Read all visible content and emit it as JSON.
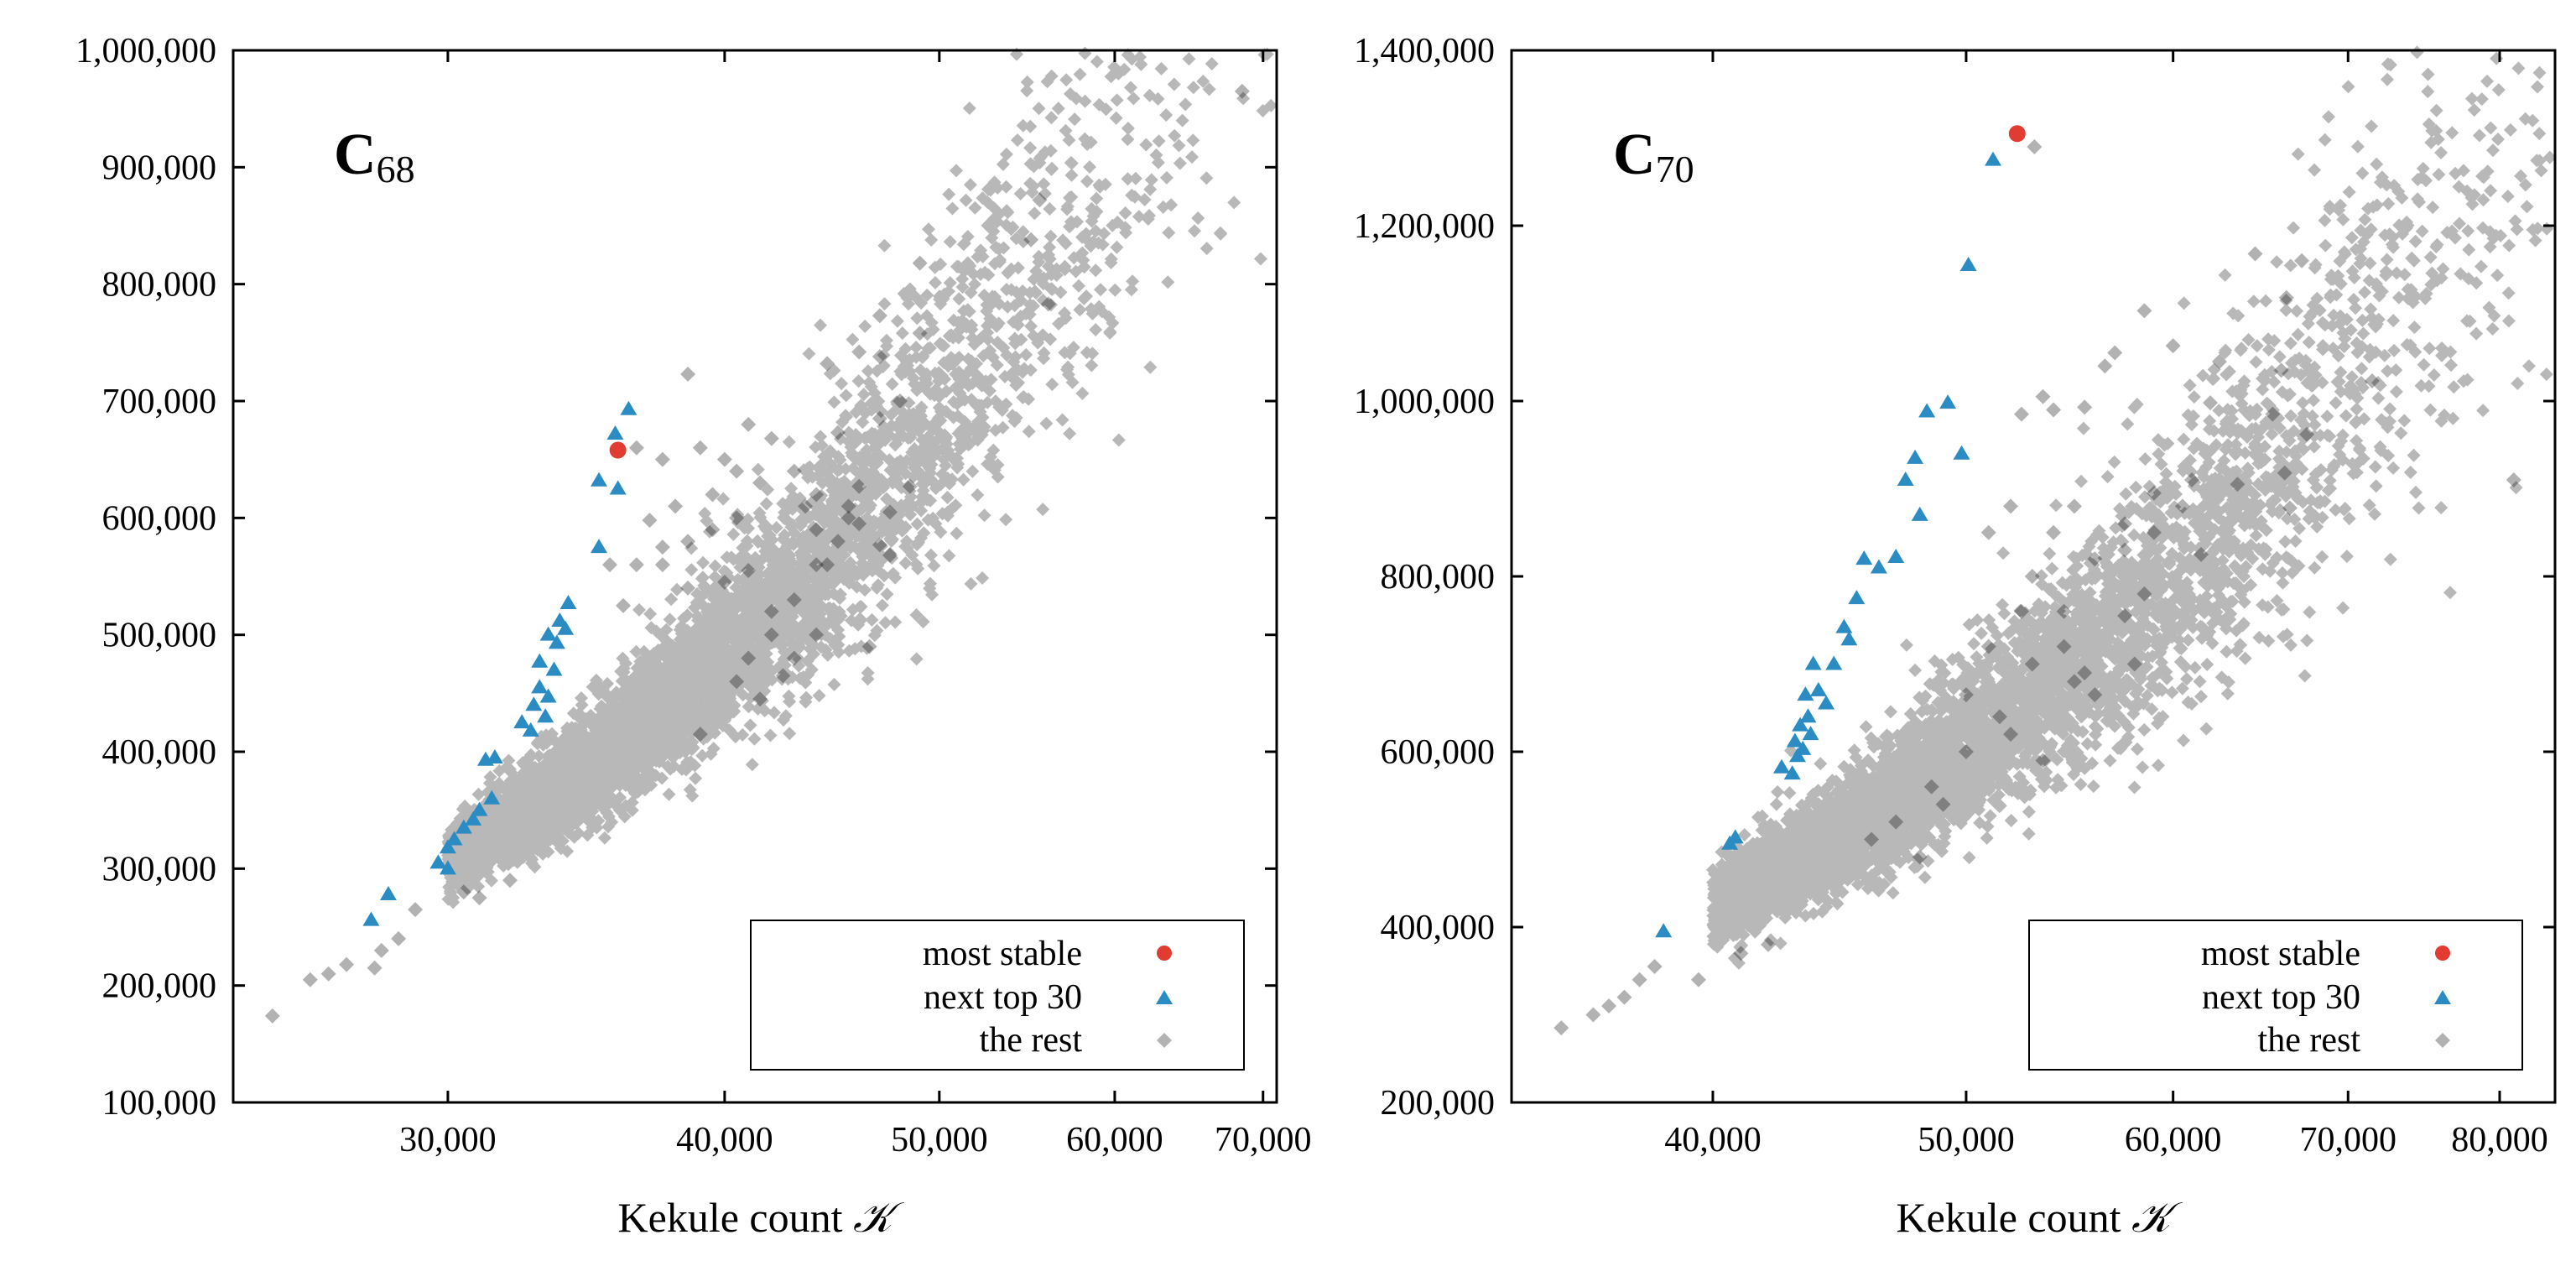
{
  "chart_data": [
    {
      "type": "scatter",
      "title": {
        "main": "C",
        "sub": "68"
      },
      "xlabel": "Kekule count",
      "xlabel_symbol": "𝒦",
      "xscale": "log",
      "xlim": [
        24000,
        71000
      ],
      "ylim": [
        100000,
        1000000
      ],
      "xticks": [
        30000,
        40000,
        50000,
        60000,
        70000
      ],
      "xtick_labels": [
        "30,000",
        "40,000",
        "50,000",
        "60,000",
        "70,000"
      ],
      "yticks": [
        100000,
        200000,
        300000,
        400000,
        500000,
        600000,
        700000,
        800000,
        900000,
        1000000
      ],
      "ytick_labels": [
        "100,000",
        "200,000",
        "300,000",
        "400,000",
        "500,000",
        "600,000",
        "700,000",
        "800,000",
        "900,000",
        "1,000,000"
      ],
      "legend_position": "bottom-right",
      "legend": [
        "most stable",
        "next top 30",
        "the rest"
      ],
      "series": [
        {
          "name": "most stable",
          "marker": "circle",
          "color": "#e03c31",
          "points": [
            [
              35800,
              658000
            ]
          ]
        },
        {
          "name": "next top 30",
          "marker": "triangle",
          "color": "#2b8cc4",
          "points": [
            [
              36200,
              693000
            ],
            [
              35700,
              672000
            ],
            [
              35100,
              632000
            ],
            [
              35800,
              625000
            ],
            [
              35100,
              575000
            ],
            [
              34000,
              527000
            ],
            [
              33700,
              512000
            ],
            [
              33900,
              505000
            ],
            [
              33300,
              500000
            ],
            [
              33600,
              493000
            ],
            [
              33000,
              477000
            ],
            [
              33500,
              470000
            ],
            [
              33000,
              455000
            ],
            [
              33300,
              447000
            ],
            [
              32800,
              440000
            ],
            [
              33200,
              430000
            ],
            [
              32700,
              418000
            ],
            [
              31500,
              395000
            ],
            [
              31200,
              393000
            ],
            [
              31400,
              360000
            ],
            [
              31000,
              350000
            ],
            [
              30800,
              342000
            ],
            [
              30500,
              335000
            ],
            [
              30200,
              325000
            ],
            [
              30000,
              318000
            ],
            [
              29700,
              305000
            ],
            [
              28200,
              278000
            ],
            [
              27700,
              256000
            ],
            [
              30000,
              300000
            ],
            [
              32400,
              425000
            ]
          ]
        },
        {
          "name": "the rest",
          "marker": "diamond",
          "color": "#000000",
          "cloud": {
            "base_x": 30000,
            "base_y": 305000,
            "slope": 1.6,
            "spread_along": 0.33,
            "spread_across": 0.045,
            "count": 5000,
            "seed": 11
          },
          "points": [
            [
              68500,
              965000
            ],
            [
              55500,
              872000
            ],
            [
              55000,
              838000
            ],
            [
              56000,
              783000
            ],
            [
              49000,
              818000
            ],
            [
              47000,
              773000
            ],
            [
              49000,
              758000
            ],
            [
              44500,
              732000
            ],
            [
              46000,
              742000
            ],
            [
              47000,
              738000
            ],
            [
              38500,
              723000
            ],
            [
              48000,
              700000
            ],
            [
              47000,
              685000
            ],
            [
              41000,
              680000
            ],
            [
              42000,
              668000
            ],
            [
              45000,
              673000
            ],
            [
              43000,
              640000
            ],
            [
              44000,
              620000
            ],
            [
              46000,
              627000
            ],
            [
              48500,
              627000
            ],
            [
              47500,
              605000
            ],
            [
              45500,
              600000
            ],
            [
              47000,
              577000
            ],
            [
              44500,
              560000
            ],
            [
              47500,
              568000
            ],
            [
              46500,
              490000
            ],
            [
              42500,
              465000
            ],
            [
              40500,
              460000
            ],
            [
              41500,
              445000
            ],
            [
              39000,
              415000
            ],
            [
              36500,
              660000
            ],
            [
              37500,
              650000
            ],
            [
              39000,
              660000
            ],
            [
              40000,
              650000
            ],
            [
              40500,
              600000
            ],
            [
              38000,
              610000
            ],
            [
              39500,
              590000
            ],
            [
              37000,
              598000
            ],
            [
              37500,
              560000
            ],
            [
              38500,
              540000
            ],
            [
              26500,
              210000
            ],
            [
              25000,
              174000
            ],
            [
              27000,
              218000
            ],
            [
              28000,
              230000
            ],
            [
              27800,
              215000
            ],
            [
              26000,
              205000
            ],
            [
              28500,
              240000
            ],
            [
              29000,
              265000
            ],
            [
              30500,
              280000
            ],
            [
              31000,
              275000
            ],
            [
              32000,
              290000
            ],
            [
              40000,
              545000
            ],
            [
              41000,
              555000
            ],
            [
              42000,
              520000
            ],
            [
              43000,
              530000
            ],
            [
              44000,
              560000
            ],
            [
              45000,
              580000
            ],
            [
              46000,
              595000
            ],
            [
              45500,
              610000
            ],
            [
              44000,
              590000
            ],
            [
              43500,
              610000
            ],
            [
              41500,
              630000
            ],
            [
              40500,
              640000
            ],
            [
              39500,
              620000
            ],
            [
              38500,
              580000
            ],
            [
              37500,
              575000
            ],
            [
              36500,
              560000
            ],
            [
              35500,
              560000
            ],
            [
              36000,
              525000
            ],
            [
              42000,
              500000
            ],
            [
              43000,
              480000
            ],
            [
              44000,
              500000
            ],
            [
              41000,
              480000
            ]
          ]
        }
      ]
    },
    {
      "type": "scatter",
      "title": {
        "main": "C",
        "sub": "70"
      },
      "xlabel": "Kekule count",
      "xlabel_symbol": "𝒦",
      "xscale": "log",
      "xlim": [
        33500,
        84000
      ],
      "ylim": [
        200000,
        1400000
      ],
      "xticks": [
        40000,
        50000,
        60000,
        70000,
        80000
      ],
      "xtick_labels": [
        "40,000",
        "50,000",
        "60,000",
        "70,000",
        "80,000"
      ],
      "yticks": [
        200000,
        400000,
        600000,
        800000,
        1000000,
        1200000,
        1400000
      ],
      "ytick_labels": [
        "200,000",
        "400,000",
        "600,000",
        "800,000",
        "1,000,000",
        "1,200,000",
        "1,400,000"
      ],
      "legend_position": "bottom-right",
      "legend": [
        "most stable",
        "next top 30",
        "the rest"
      ],
      "series": [
        {
          "name": "most stable",
          "marker": "circle",
          "color": "#e03c31",
          "points": [
            [
              52300,
              1305000
            ]
          ]
        },
        {
          "name": "next top 30",
          "marker": "triangle",
          "color": "#2b8cc4",
          "points": [
            [
              51200,
              1275000
            ],
            [
              50100,
              1155000
            ],
            [
              49200,
              998000
            ],
            [
              48300,
              988000
            ],
            [
              49800,
              940000
            ],
            [
              47800,
              935000
            ],
            [
              47400,
              910000
            ],
            [
              48000,
              870000
            ],
            [
              47000,
              822000
            ],
            [
              45700,
              820000
            ],
            [
              46300,
              810000
            ],
            [
              45400,
              775000
            ],
            [
              44900,
              742000
            ],
            [
              45100,
              728000
            ],
            [
              44500,
              700000
            ],
            [
              43700,
              700000
            ],
            [
              43900,
              670000
            ],
            [
              43400,
              665000
            ],
            [
              43500,
              640000
            ],
            [
              43200,
              630000
            ],
            [
              43600,
              620000
            ],
            [
              43000,
              612000
            ],
            [
              43300,
              603000
            ],
            [
              43100,
              595000
            ],
            [
              42500,
              582000
            ],
            [
              42900,
              575000
            ],
            [
              40800,
              502000
            ],
            [
              40600,
              495000
            ],
            [
              38300,
              395000
            ],
            [
              44200,
              655000
            ]
          ]
        },
        {
          "name": "the rest",
          "marker": "diamond",
          "color": "#000000",
          "cloud": {
            "base_x": 40000,
            "base_y": 420000,
            "slope": 1.6,
            "spread_along": 0.3,
            "spread_across": 0.05,
            "count": 5000,
            "seed": 29
          },
          "points": [
            [
              53100,
              1290000
            ],
            [
              64500,
              1168000
            ],
            [
              67200,
              1160000
            ],
            [
              66300,
              1118000
            ],
            [
              58500,
              1103000
            ],
            [
              56500,
              1040000
            ],
            [
              57000,
              1055000
            ],
            [
              60000,
              1063000
            ],
            [
              62500,
              1045000
            ],
            [
              71500,
              1023000
            ],
            [
              62000,
              998000
            ],
            [
              65500,
              985000
            ],
            [
              66000,
              1035000
            ],
            [
              67500,
              962000
            ],
            [
              55500,
              993000
            ],
            [
              54000,
              990000
            ],
            [
              53500,
              1005000
            ],
            [
              52500,
              985000
            ],
            [
              63500,
              905000
            ],
            [
              66200,
              918000
            ],
            [
              66500,
              878000
            ],
            [
              81000,
              910000
            ],
            [
              61000,
              910000
            ],
            [
              59000,
              895000
            ],
            [
              60500,
              880000
            ],
            [
              57500,
              860000
            ],
            [
              61500,
              825000
            ],
            [
              58500,
              780000
            ],
            [
              57500,
              755000
            ],
            [
              58000,
              700000
            ],
            [
              55500,
              690000
            ],
            [
              54500,
              720000
            ],
            [
              56000,
              665000
            ],
            [
              50000,
              665000
            ],
            [
              51000,
              720000
            ],
            [
              52500,
              760000
            ],
            [
              53000,
              800000
            ],
            [
              54000,
              850000
            ],
            [
              55000,
              880000
            ],
            [
              52000,
              880000
            ],
            [
              51000,
              850000
            ],
            [
              36000,
              300000
            ],
            [
              35000,
              285000
            ],
            [
              36500,
              310000
            ],
            [
              37000,
              320000
            ],
            [
              37500,
              340000
            ],
            [
              38000,
              355000
            ],
            [
              39500,
              340000
            ],
            [
              41000,
              370000
            ],
            [
              42000,
              380000
            ],
            [
              49000,
              540000
            ],
            [
              48000,
              480000
            ],
            [
              50000,
              600000
            ],
            [
              51500,
              640000
            ],
            [
              53000,
              700000
            ],
            [
              54500,
              760000
            ],
            [
              56000,
              820000
            ],
            [
              57500,
              830000
            ],
            [
              59000,
              850000
            ],
            [
              48500,
              560000
            ],
            [
              47000,
              520000
            ],
            [
              46000,
              500000
            ],
            [
              53500,
              590000
            ],
            [
              55000,
              680000
            ],
            [
              52000,
              620000
            ]
          ]
        }
      ]
    }
  ]
}
